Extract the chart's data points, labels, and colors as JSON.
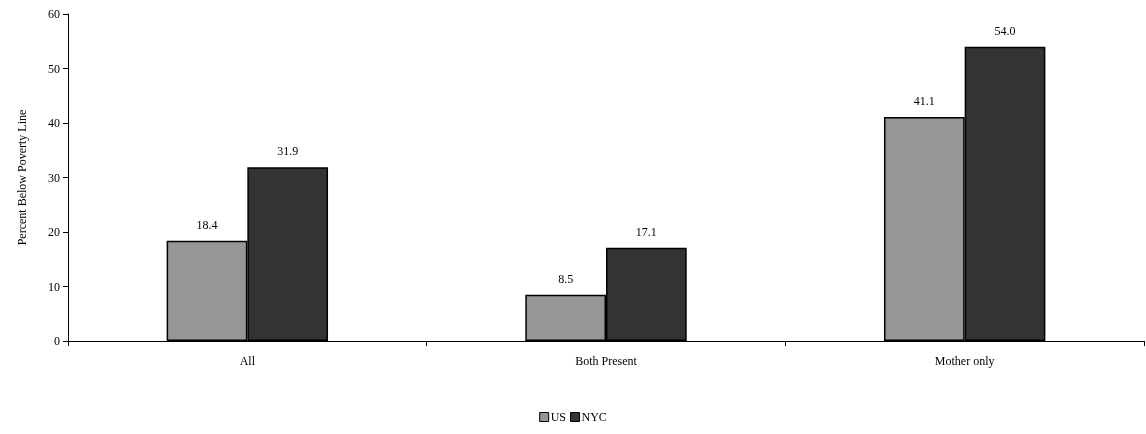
{
  "chart_data": {
    "type": "bar",
    "ylabel": "Percent Below Poverty Line",
    "categories": [
      "All",
      "Both Present",
      "Mother only"
    ],
    "series": [
      {
        "name": "US",
        "color": "#969696",
        "values": [
          18.4,
          8.5,
          41.1
        ],
        "value_labels": [
          "18.4",
          "8.5",
          "41.1"
        ]
      },
      {
        "name": "NYC",
        "color": "#333333",
        "values": [
          31.9,
          17.1,
          54.0
        ],
        "value_labels": [
          "31.9",
          "17.1",
          "54.0"
        ]
      }
    ],
    "ylim": [
      0,
      60
    ],
    "yticks": [
      0,
      10,
      20,
      30,
      40,
      50,
      60
    ],
    "grid": false,
    "legend": "bottom"
  }
}
